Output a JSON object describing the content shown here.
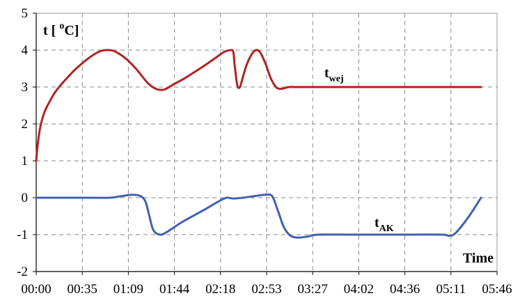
{
  "chart_data": {
    "type": "line",
    "y_axis_label": {
      "main": "t [ ",
      "sup": "o",
      "tail": "C]"
    },
    "x_axis_label": "Time",
    "x_tick_labels": [
      "00:00",
      "00:35",
      "01:09",
      "01:44",
      "02:18",
      "02:53",
      "03:27",
      "04:02",
      "04:36",
      "05:11",
      "05:46"
    ],
    "y_ticks": [
      5,
      4,
      3,
      2,
      1,
      0,
      -1,
      -2
    ],
    "ylim": [
      -2,
      5
    ],
    "xlim_minutes": [
      0,
      346
    ],
    "grid": true,
    "series": [
      {
        "label_main": "t",
        "label_sub": "wej",
        "color": "#b22222",
        "points": [
          [
            0,
            1.0
          ],
          [
            1,
            1.4
          ],
          [
            3,
            1.9
          ],
          [
            6,
            2.3
          ],
          [
            10,
            2.6
          ],
          [
            15,
            2.9
          ],
          [
            22,
            3.2
          ],
          [
            30,
            3.5
          ],
          [
            40,
            3.8
          ],
          [
            48,
            3.97
          ],
          [
            55,
            4.0
          ],
          [
            60,
            3.95
          ],
          [
            68,
            3.75
          ],
          [
            76,
            3.45
          ],
          [
            84,
            3.1
          ],
          [
            90,
            2.95
          ],
          [
            96,
            2.93
          ],
          [
            102,
            3.05
          ],
          [
            112,
            3.25
          ],
          [
            125,
            3.55
          ],
          [
            135,
            3.8
          ],
          [
            141,
            3.95
          ],
          [
            146,
            4.0
          ],
          [
            148,
            3.95
          ],
          [
            149,
            3.6
          ],
          [
            151,
            3.05
          ],
          [
            153,
            3.0
          ],
          [
            155,
            3.25
          ],
          [
            158,
            3.6
          ],
          [
            162,
            3.9
          ],
          [
            165,
            4.0
          ],
          [
            168,
            3.95
          ],
          [
            172,
            3.65
          ],
          [
            176,
            3.25
          ],
          [
            180,
            3.0
          ],
          [
            184,
            2.95
          ],
          [
            190,
            3.0
          ],
          [
            200,
            3.0
          ],
          [
            250,
            3.0
          ],
          [
            300,
            3.0
          ],
          [
            334,
            3.0
          ]
        ]
      },
      {
        "label_main": "t",
        "label_sub": "AK",
        "color": "#4060b0",
        "points": [
          [
            0,
            0.0
          ],
          [
            40,
            0.0
          ],
          [
            55,
            0.0
          ],
          [
            65,
            0.05
          ],
          [
            72,
            0.08
          ],
          [
            78,
            0.05
          ],
          [
            82,
            -0.1
          ],
          [
            85,
            -0.5
          ],
          [
            88,
            -0.88
          ],
          [
            93,
            -1.0
          ],
          [
            98,
            -0.93
          ],
          [
            110,
            -0.65
          ],
          [
            125,
            -0.35
          ],
          [
            138,
            -0.08
          ],
          [
            143,
            0.0
          ],
          [
            148,
            -0.02
          ],
          [
            155,
            0.0
          ],
          [
            165,
            0.05
          ],
          [
            172,
            0.08
          ],
          [
            177,
            0.05
          ],
          [
            181,
            -0.3
          ],
          [
            186,
            -0.8
          ],
          [
            191,
            -1.03
          ],
          [
            197,
            -1.08
          ],
          [
            204,
            -1.05
          ],
          [
            212,
            -1.0
          ],
          [
            240,
            -1.0
          ],
          [
            280,
            -1.0
          ],
          [
            305,
            -1.0
          ],
          [
            310,
            -1.03
          ],
          [
            315,
            -0.95
          ],
          [
            325,
            -0.5
          ],
          [
            334,
            0.0
          ]
        ]
      }
    ]
  }
}
